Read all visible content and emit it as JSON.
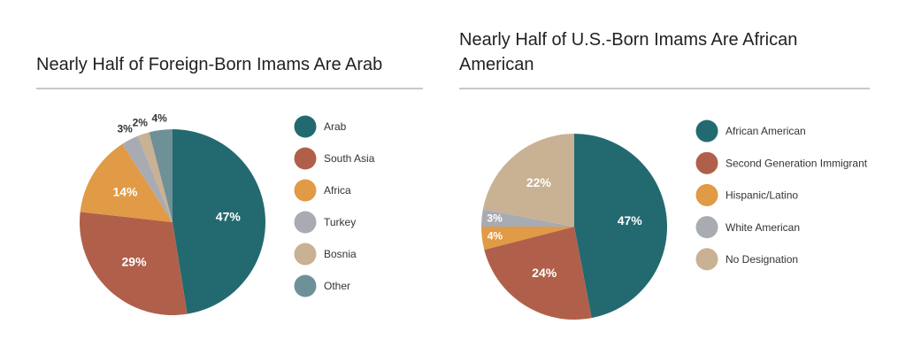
{
  "chart_data": [
    {
      "type": "pie",
      "title": "Nearly Half of Foreign-Born Imams Are Arab",
      "categories": [
        "Arab",
        "South Asia",
        "Africa",
        "Turkey",
        "Bosnia",
        "Other"
      ],
      "values": [
        47,
        29,
        14,
        3,
        2,
        4
      ],
      "value_labels": [
        "47%",
        "29%",
        "14%",
        "3%",
        "2%",
        "4%"
      ],
      "colors": [
        "#236a70",
        "#b0604a",
        "#e19a45",
        "#a9abb3",
        "#c9b193",
        "#6e9198"
      ]
    },
    {
      "type": "pie",
      "title": "Nearly Half of U.S.-Born Imams Are African American",
      "categories": [
        "African American",
        "Second Generation Immigrant",
        "Hispanic/Latino",
        "White American",
        "No Designation"
      ],
      "values": [
        47,
        24,
        4,
        3,
        22
      ],
      "value_labels": [
        "47%",
        "24%",
        "4%",
        "3%",
        "22%"
      ],
      "colors": [
        "#236a70",
        "#b0604a",
        "#e19a45",
        "#a9abb3",
        "#c9b193"
      ]
    }
  ]
}
